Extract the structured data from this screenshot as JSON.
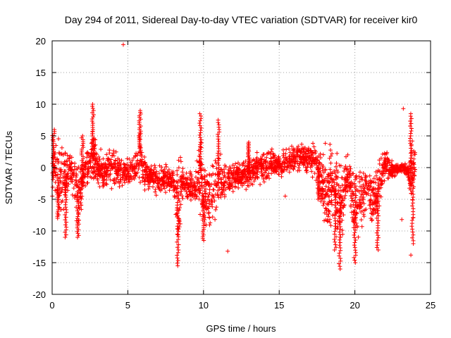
{
  "chart_data": {
    "type": "scatter",
    "title": "Day 294 of 2011, Sidereal Day-to-day VTEC variation (SDTVAR) for receiver kir0",
    "xlabel": "GPS time / hours",
    "ylabel": "SDTVAR / TECUs",
    "xlim": [
      0,
      25
    ],
    "ylim": [
      -20,
      20
    ],
    "xticks": [
      0,
      5,
      10,
      15,
      20,
      25
    ],
    "yticks": [
      -20,
      -15,
      -10,
      -5,
      0,
      5,
      10,
      15,
      20
    ],
    "grid": true,
    "marker": "+",
    "series_color": "#ff0000",
    "series": [
      {
        "name": "SDTVAR",
        "band": [
          [
            0.0,
            -10,
            7
          ],
          [
            0.3,
            -9,
            6
          ],
          [
            0.6,
            -8,
            5
          ],
          [
            0.9,
            -7,
            4
          ],
          [
            1.2,
            -4,
            5
          ],
          [
            1.5,
            -8,
            3
          ],
          [
            1.8,
            -11,
            2
          ],
          [
            2.1,
            -5,
            3
          ],
          [
            2.4,
            -3,
            4
          ],
          [
            2.7,
            -5,
            9
          ],
          [
            3.0,
            -4,
            3
          ],
          [
            3.5,
            -5,
            3
          ],
          [
            4.0,
            -4,
            4
          ],
          [
            4.5,
            -4,
            3
          ],
          [
            5.0,
            -4,
            2
          ],
          [
            5.5,
            -4,
            3
          ],
          [
            5.8,
            -4,
            9
          ],
          [
            6.0,
            -4,
            3
          ],
          [
            6.5,
            -4,
            1
          ],
          [
            7.0,
            -5,
            1
          ],
          [
            7.5,
            -5,
            1
          ],
          [
            8.0,
            -5,
            1
          ],
          [
            8.3,
            -15,
            4
          ],
          [
            8.6,
            -6,
            2
          ],
          [
            9.0,
            -6,
            0
          ],
          [
            9.5,
            -7,
            0
          ],
          [
            9.8,
            -9,
            8
          ],
          [
            10.0,
            -11,
            2
          ],
          [
            10.5,
            -10,
            1
          ],
          [
            11.0,
            -8,
            5
          ],
          [
            11.5,
            -6,
            1
          ],
          [
            12.0,
            -5,
            2
          ],
          [
            12.5,
            -4,
            1
          ],
          [
            13.0,
            -4,
            2
          ],
          [
            13.5,
            -3,
            3
          ],
          [
            14.0,
            -3,
            3
          ],
          [
            14.5,
            -2,
            4
          ],
          [
            15.0,
            -2,
            3
          ],
          [
            15.5,
            -2,
            4
          ],
          [
            16.0,
            -2,
            5
          ],
          [
            16.5,
            -1,
            4
          ],
          [
            17.0,
            -1,
            5
          ],
          [
            17.5,
            -3,
            5
          ],
          [
            17.8,
            -10,
            5
          ],
          [
            18.2,
            -12,
            6
          ],
          [
            18.6,
            -9,
            5
          ],
          [
            19.0,
            -15,
            3
          ],
          [
            19.5,
            -5,
            3
          ],
          [
            20.0,
            -14,
            3
          ],
          [
            20.3,
            -12,
            2
          ],
          [
            20.8,
            -7,
            1
          ],
          [
            21.2,
            -12,
            0
          ],
          [
            21.6,
            -8,
            2
          ],
          [
            22.0,
            -3,
            4
          ],
          [
            22.5,
            -2,
            1
          ],
          [
            23.0,
            -1,
            1
          ],
          [
            23.5,
            -2,
            1
          ],
          [
            23.8,
            -10,
            8
          ],
          [
            24.0,
            -4,
            5
          ]
        ],
        "spikes": [
          [
            0.1,
            6
          ],
          [
            0.4,
            -8
          ],
          [
            0.9,
            -11
          ],
          [
            1.7,
            -11
          ],
          [
            2.0,
            5
          ],
          [
            2.7,
            10
          ],
          [
            5.8,
            9
          ],
          [
            8.3,
            -15.5
          ],
          [
            9.8,
            8.5
          ],
          [
            10.0,
            -11.5
          ],
          [
            11.0,
            7.5
          ],
          [
            13.0,
            4
          ],
          [
            17.6,
            -5
          ],
          [
            18.7,
            -13
          ],
          [
            19.0,
            -16
          ],
          [
            20.0,
            -15
          ],
          [
            21.5,
            -13
          ],
          [
            23.7,
            8.5
          ],
          [
            23.8,
            -12
          ]
        ],
        "outliers": [
          [
            4.7,
            19.4
          ],
          [
            11.6,
            -13.2
          ],
          [
            23.2,
            9.3
          ],
          [
            23.7,
            -13.8
          ],
          [
            23.1,
            -8.2
          ],
          [
            15.4,
            -4.5
          ]
        ]
      }
    ]
  }
}
